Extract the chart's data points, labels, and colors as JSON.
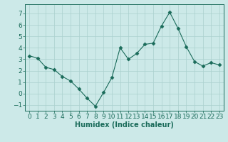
{
  "x": [
    0,
    1,
    2,
    3,
    4,
    5,
    6,
    7,
    8,
    9,
    10,
    11,
    12,
    13,
    14,
    15,
    16,
    17,
    18,
    19,
    20,
    21,
    22,
    23
  ],
  "y": [
    3.3,
    3.1,
    2.3,
    2.1,
    1.5,
    1.1,
    0.4,
    -0.4,
    -1.1,
    0.1,
    1.4,
    4.0,
    3.0,
    3.5,
    4.3,
    4.4,
    5.9,
    7.1,
    5.7,
    4.1,
    2.8,
    2.4,
    2.7,
    2.5
  ],
  "line_color": "#1a6b5a",
  "marker": "D",
  "marker_size": 2.5,
  "bg_color": "#cce9e8",
  "grid_color": "#aad0ce",
  "xlabel": "Humidex (Indice chaleur)",
  "ylim": [
    -1.5,
    7.8
  ],
  "xlim": [
    -0.5,
    23.5
  ],
  "yticks": [
    -1,
    0,
    1,
    2,
    3,
    4,
    5,
    6,
    7
  ],
  "xticks": [
    0,
    1,
    2,
    3,
    4,
    5,
    6,
    7,
    8,
    9,
    10,
    11,
    12,
    13,
    14,
    15,
    16,
    17,
    18,
    19,
    20,
    21,
    22,
    23
  ],
  "tick_color": "#1a6b5a",
  "label_fontsize": 6.5,
  "axis_fontsize": 7
}
